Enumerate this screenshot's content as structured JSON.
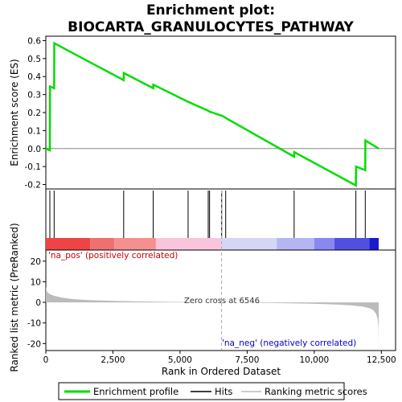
{
  "title_line1": "Enrichment plot:",
  "title_line2": "BIOCARTA_GRANULOCYTES_PATHWAY",
  "colors": {
    "es_line": "#00dd00",
    "hits": "#000000",
    "metric_fill": "#bbbbbb",
    "zero_cross_line": "#aaaaaa",
    "pos_label": "#cc0000",
    "neg_label": "#0000cc"
  },
  "chart_data": {
    "type": "line",
    "x_range": [
      0,
      12400
    ],
    "xlabel": "Rank in Ordered Dataset",
    "x_ticks": [
      0,
      2500,
      5000,
      7500,
      10000,
      12500
    ],
    "x_tick_labels": [
      "0",
      "2,500",
      "5,000",
      "7,500",
      "10,000",
      "12,500"
    ],
    "top_panel": {
      "ylabel": "Enrichment score (ES)",
      "ylim": [
        -0.22,
        0.62
      ],
      "y_ticks": [
        -0.2,
        -0.1,
        0.0,
        0.1,
        0.2,
        0.3,
        0.4,
        0.5,
        0.6
      ],
      "y_tick_labels": [
        "-0.2",
        "-0.1",
        "0.0",
        "0.1",
        "0.2",
        "0.3",
        "0.4",
        "0.5",
        "0.6"
      ],
      "series_name": "Enrichment profile",
      "es_points": [
        [
          0,
          0.0
        ],
        [
          150,
          -0.01
        ],
        [
          155,
          0.345
        ],
        [
          310,
          0.335
        ],
        [
          315,
          0.585
        ],
        [
          2900,
          0.38
        ],
        [
          2905,
          0.42
        ],
        [
          4000,
          0.335
        ],
        [
          4005,
          0.355
        ],
        [
          5300,
          0.26
        ],
        [
          6050,
          0.21
        ],
        [
          6100,
          0.205
        ],
        [
          6600,
          0.18
        ],
        [
          6700,
          0.17
        ],
        [
          9250,
          -0.045
        ],
        [
          9255,
          -0.02
        ],
        [
          11550,
          -0.205
        ],
        [
          11555,
          -0.1
        ],
        [
          11900,
          -0.12
        ],
        [
          11905,
          0.045
        ],
        [
          12400,
          0.0
        ]
      ]
    },
    "hits": [
      150,
      310,
      2900,
      4000,
      5300,
      6050,
      6100,
      6550,
      6700,
      9250,
      11550,
      11900
    ],
    "middle_band_segments": [
      {
        "from": 0,
        "to": 1650,
        "color": "#ee4444"
      },
      {
        "from": 1650,
        "to": 2550,
        "color": "#f07070"
      },
      {
        "from": 2550,
        "to": 4100,
        "color": "#f59090"
      },
      {
        "from": 4100,
        "to": 6546,
        "color": "#f9c5dd"
      },
      {
        "from": 6546,
        "to": 8600,
        "color": "#d5d5f8"
      },
      {
        "from": 8600,
        "to": 10000,
        "color": "#b5b5f2"
      },
      {
        "from": 10000,
        "to": 10750,
        "color": "#8888ee"
      },
      {
        "from": 10750,
        "to": 12050,
        "color": "#5050e0"
      },
      {
        "from": 12050,
        "to": 12400,
        "color": "#1a1acc"
      }
    ],
    "bottom_panel": {
      "ylabel": "Ranked list metric (PreRanked)",
      "ylim": [
        -23,
        25
      ],
      "y_ticks": [
        -20,
        -10,
        0,
        10,
        20
      ],
      "y_tick_labels": [
        "-20",
        "-10",
        "0",
        "10",
        "20"
      ],
      "series_name": "Ranking metric scores",
      "metric_points": [
        [
          0,
          7.5
        ],
        [
          50,
          5.0
        ],
        [
          150,
          4.0
        ],
        [
          300,
          3.2
        ],
        [
          600,
          2.3
        ],
        [
          1000,
          1.6
        ],
        [
          1600,
          1.1
        ],
        [
          2500,
          0.7
        ],
        [
          3500,
          0.45
        ],
        [
          4500,
          0.25
        ],
        [
          5500,
          0.12
        ],
        [
          6546,
          0.0
        ],
        [
          7500,
          -0.15
        ],
        [
          8500,
          -0.3
        ],
        [
          9500,
          -0.55
        ],
        [
          10300,
          -0.8
        ],
        [
          10900,
          -1.1
        ],
        [
          11400,
          -1.5
        ],
        [
          11800,
          -2.0
        ],
        [
          12050,
          -2.8
        ],
        [
          12200,
          -3.8
        ],
        [
          12300,
          -5.5
        ],
        [
          12360,
          -8.0
        ],
        [
          12390,
          -12.0
        ],
        [
          12400,
          -20.5
        ]
      ]
    },
    "zero_cross_x": 6546,
    "zero_cross_label": "Zero cross at 6546",
    "pos_label": "'na_pos' (positively correlated)",
    "neg_label": "'na_neg' (negatively correlated)"
  },
  "legend": {
    "items": [
      {
        "label": "Enrichment profile"
      },
      {
        "label": "Hits"
      },
      {
        "label": "Ranking metric scores"
      }
    ]
  }
}
